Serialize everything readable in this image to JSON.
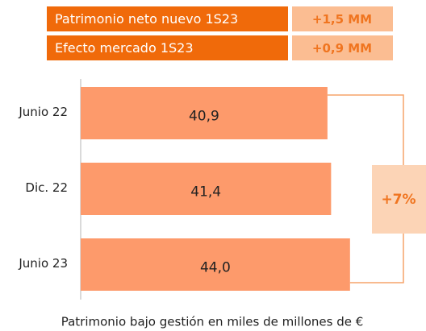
{
  "chart_data": {
    "type": "bar",
    "orientation": "horizontal",
    "header_rows": [
      {
        "label": "Patrimonio neto nuevo 1S23",
        "value": "+1,5 MM"
      },
      {
        "label": "Efecto mercado 1S23",
        "value": "+0,9 MM"
      }
    ],
    "categories": [
      "Junio 22",
      "Dic. 22",
      "Junio 23"
    ],
    "values": [
      40.9,
      41.4,
      44.0
    ],
    "value_labels": [
      "40,9",
      "41,4",
      "44,0"
    ],
    "color": "#fd9a6b",
    "xlim": [
      7,
      52
    ],
    "change_label": "+7%",
    "caption": "Patrimonio bajo gestión en miles de millones de €"
  }
}
